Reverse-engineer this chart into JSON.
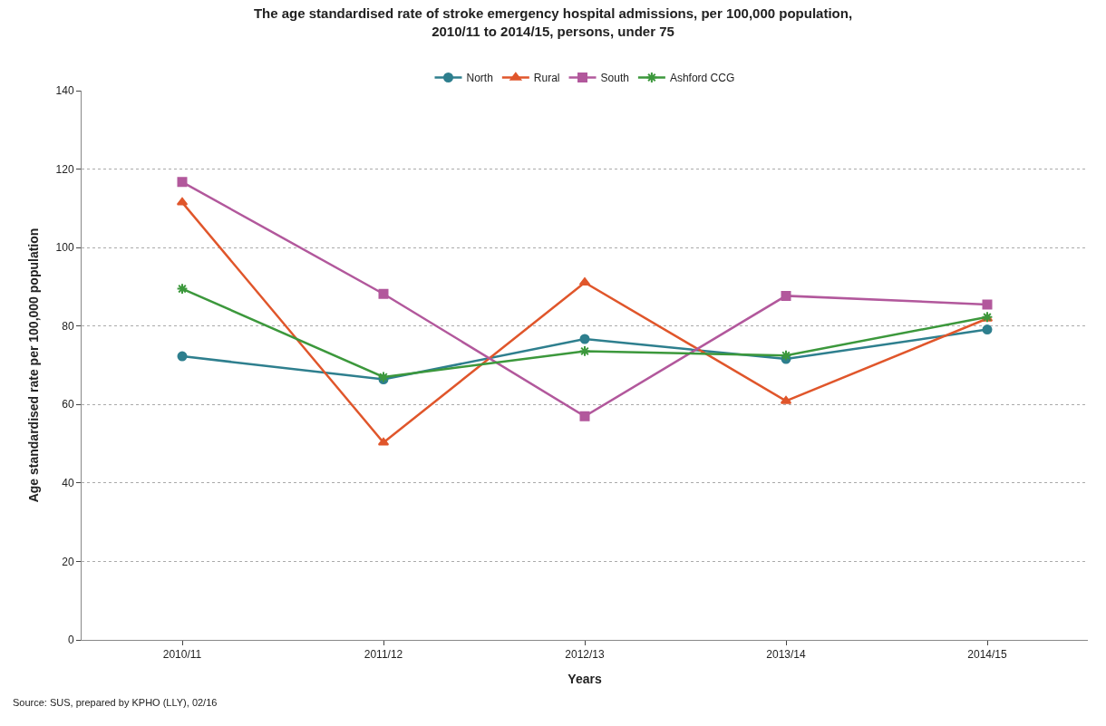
{
  "chart_data": {
    "type": "line",
    "title": "The age standardised rate of stroke emergency hospital admissions, per 100,000 population, 2010/11 to 2014/15, persons, under 75",
    "xlabel": "Years",
    "ylabel": "Age standardised rate per 100,000 population",
    "categories": [
      "2010/11",
      "2011/12",
      "2012/13",
      "2013/14",
      "2014/15"
    ],
    "series": [
      {
        "name": "North",
        "color": "#2e7f8e",
        "marker": "circle",
        "values": [
          72.3,
          66.4,
          76.7,
          71.6,
          79.1
        ]
      },
      {
        "name": "Rural",
        "color": "#e0562b",
        "marker": "triangle",
        "values": [
          111.5,
          50.3,
          91.1,
          60.9,
          81.9
        ]
      },
      {
        "name": "South",
        "color": "#b2589c",
        "marker": "square",
        "values": [
          116.7,
          88.2,
          57.0,
          87.7,
          85.5
        ]
      },
      {
        "name": "Ashford CCG",
        "color": "#3c983c",
        "marker": "cross",
        "values": [
          89.5,
          67.0,
          73.6,
          72.5,
          82.3
        ]
      }
    ],
    "ylim": [
      0,
      140
    ],
    "yticks": [
      0,
      20,
      40,
      60,
      80,
      100,
      120,
      140
    ],
    "grid": "y",
    "legend": "top",
    "annotations": [
      "Source: SUS, prepared by KPHO (LLY), 02/16"
    ]
  }
}
